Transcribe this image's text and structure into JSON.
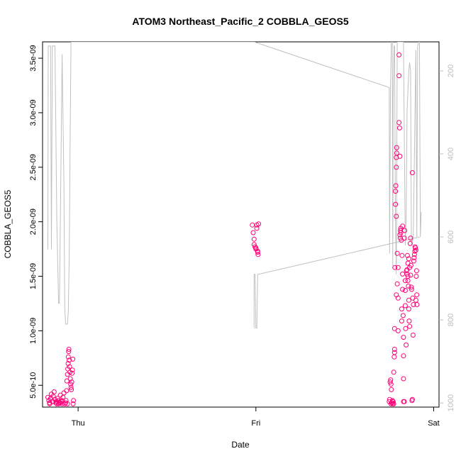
{
  "chart_data": {
    "type": "scatter",
    "title": "ATOM3 Northeast_Pacific_2 COBBLA_GEOS5",
    "xlabel": "Date",
    "ylabel": "COBBLA_GEOS5",
    "x_ticks": [
      {
        "label": "Thu",
        "day": 0
      },
      {
        "label": "Fri",
        "day": 1
      },
      {
        "label": "Sat",
        "day": 2
      }
    ],
    "xlim": [
      -0.2,
      2.03
    ],
    "y_ticks": [
      "5.0e-10",
      "1.0e-09",
      "1.5e-09",
      "2.0e-09",
      "2.5e-09",
      "3.0e-09",
      "3.5e-09"
    ],
    "y_tick_values": [
      5e-10,
      1e-09,
      1.5e-09,
      2e-09,
      2.5e-09,
      3e-09,
      3.5e-09
    ],
    "ylim": [
      3e-10,
      3.65e-09
    ],
    "y2_ticks": [
      "200",
      "400",
      "600",
      "800",
      "1000"
    ],
    "y2_tick_values": [
      200,
      400,
      600,
      800,
      1000
    ],
    "y2lim": [
      1010,
      130
    ],
    "y2_reversed": true,
    "point_color": "#ff0077",
    "line_color": "#c0c0c0",
    "tick_color_right": "#bdbdbd",
    "series": [
      {
        "marker": "circle",
        "points": [
          [
            -0.17,
            3.9e-10
          ],
          [
            -0.165,
            3.6e-10
          ],
          [
            -0.16,
            3.4e-10
          ],
          [
            -0.155,
            3.8e-10
          ],
          [
            -0.15,
            4.2e-10
          ],
          [
            -0.145,
            3.5e-10
          ],
          [
            -0.14,
            4e-10
          ],
          [
            -0.135,
            4.4e-10
          ],
          [
            -0.13,
            3.7e-10
          ],
          [
            -0.125,
            3.4e-10
          ],
          [
            -0.12,
            3.5e-10
          ],
          [
            -0.115,
            3.8e-10
          ],
          [
            -0.11,
            3.6e-10
          ],
          [
            -0.105,
            3.4e-10
          ],
          [
            -0.1,
            4.1e-10
          ],
          [
            -0.095,
            3.5e-10
          ],
          [
            -0.09,
            3.6e-10
          ],
          [
            -0.085,
            3.9e-10
          ],
          [
            -0.08,
            4.3e-10
          ],
          [
            -0.075,
            3.3e-10
          ],
          [
            -0.07,
            3.4e-10
          ],
          [
            -0.068,
            3.6e-10
          ],
          [
            -0.065,
            4.5e-10
          ],
          [
            -0.063,
            5.4e-10
          ],
          [
            -0.06,
            6e-10
          ],
          [
            -0.058,
            6.5e-10
          ],
          [
            -0.056,
            7e-10
          ],
          [
            -0.055,
            7.6e-10
          ],
          [
            -0.053,
            8.1e-10
          ],
          [
            -0.052,
            8.3e-10
          ],
          [
            -0.05,
            7.3e-10
          ],
          [
            -0.048,
            6.7e-10
          ],
          [
            -0.046,
            6.2e-10
          ],
          [
            -0.044,
            5.6e-10
          ],
          [
            -0.042,
            5.1e-10
          ],
          [
            -0.04,
            4.8e-10
          ],
          [
            -0.038,
            4.6e-10
          ],
          [
            -0.036,
            5.3e-10
          ],
          [
            -0.034,
            6.1e-10
          ],
          [
            -0.032,
            6.4e-10
          ],
          [
            -0.03,
            7.4e-10
          ],
          [
            -0.028,
            3.3e-10
          ],
          [
            -0.026,
            3.6e-10
          ],
          [
            -0.11,
            3.3e-10
          ],
          [
            -0.09,
            3.3e-10
          ],
          [
            -0.06,
            3.3e-10
          ],
          [
            -0.16,
            3.3e-10
          ],
          [
            -0.14,
            3.5e-10
          ],
          [
            -0.12,
            3.3e-10
          ],
          [
            -0.1,
            3.4e-10
          ],
          [
            0.98,
            1.97e-09
          ],
          [
            0.985,
            1.9e-09
          ],
          [
            0.99,
            1.84e-09
          ],
          [
            0.99,
            1.79e-09
          ],
          [
            0.995,
            1.77e-09
          ],
          [
            1.0,
            1.76e-09
          ],
          [
            1.0,
            1.75e-09
          ],
          [
            1.005,
            1.97e-09
          ],
          [
            1.005,
            1.94e-09
          ],
          [
            1.01,
            1.73e-09
          ],
          [
            1.01,
            1.72e-09
          ],
          [
            1.012,
            1.7e-09
          ],
          [
            1.015,
            1.98e-09
          ],
          [
            1.75,
            3.5e-10
          ],
          [
            1.752,
            3.7e-10
          ],
          [
            1.755,
            5.3e-10
          ],
          [
            1.758,
            5.5e-10
          ],
          [
            1.76,
            5.1e-10
          ],
          [
            1.762,
            4.6e-10
          ],
          [
            1.765,
            3.4e-10
          ],
          [
            1.768,
            3.6e-10
          ],
          [
            1.77,
            3.3e-10
          ],
          [
            1.772,
            3.5e-10
          ],
          [
            1.775,
            6.2e-10
          ],
          [
            1.778,
            7.6e-10
          ],
          [
            1.78,
            8.3e-10
          ],
          [
            1.78,
            8e-10
          ],
          [
            1.78,
            1.02e-09
          ],
          [
            1.782,
            1.58e-09
          ],
          [
            1.785,
            2.16e-09
          ],
          [
            1.785,
            2.28e-09
          ],
          [
            1.787,
            2.33e-09
          ],
          [
            1.79,
            2.05e-09
          ],
          [
            1.79,
            2.5e-09
          ],
          [
            1.79,
            2.59e-09
          ],
          [
            1.792,
            2.63e-09
          ],
          [
            1.792,
            2.68e-09
          ],
          [
            1.795,
            1.71e-09
          ],
          [
            1.8,
            1e-09
          ],
          [
            1.8,
            1.3e-09
          ],
          [
            1.8,
            1.58e-09
          ],
          [
            1.805,
            3.53e-09
          ],
          [
            1.805,
            3.34e-09
          ],
          [
            1.805,
            2.91e-09
          ],
          [
            1.808,
            2.86e-09
          ],
          [
            1.81,
            2.6e-09
          ],
          [
            1.81,
            1.88e-09
          ],
          [
            1.812,
            1.85e-09
          ],
          [
            1.813,
            1.92e-09
          ],
          [
            1.815,
            1.94e-09
          ],
          [
            1.815,
            1.9e-09
          ],
          [
            1.818,
            1.83e-09
          ],
          [
            1.82,
            1.2e-09
          ],
          [
            1.82,
            1.09e-09
          ],
          [
            1.822,
            1.69e-09
          ],
          [
            1.825,
            1.52e-09
          ],
          [
            1.825,
            1.38e-09
          ],
          [
            1.828,
            1.14e-09
          ],
          [
            1.83,
            9.4e-10
          ],
          [
            1.83,
            7.7e-10
          ],
          [
            1.83,
            5.6e-10
          ],
          [
            1.835,
            3.5e-10
          ],
          [
            1.835,
            1.85e-09
          ],
          [
            1.837,
            1.92e-09
          ],
          [
            1.84,
            1.46e-09
          ],
          [
            1.84,
            1.37e-09
          ],
          [
            1.84,
            1.23e-09
          ],
          [
            1.842,
            1.02e-09
          ],
          [
            1.845,
            8.7e-10
          ],
          [
            1.847,
            1.55e-09
          ],
          [
            1.85,
            1.52e-09
          ],
          [
            1.85,
            1.56e-09
          ],
          [
            1.852,
            1.69e-09
          ],
          [
            1.855,
            1.5e-09
          ],
          [
            1.855,
            1.46e-09
          ],
          [
            1.858,
            1.41e-09
          ],
          [
            1.86,
            1.28e-09
          ],
          [
            1.86,
            1.2e-09
          ],
          [
            1.862,
            1.09e-09
          ],
          [
            1.865,
            1.04e-09
          ],
          [
            1.865,
            1.58e-09
          ],
          [
            1.868,
            1.8e-09
          ],
          [
            1.87,
            1.85e-09
          ],
          [
            1.87,
            1.51e-09
          ],
          [
            1.872,
            1.6e-09
          ],
          [
            1.874,
            1.4e-09
          ],
          [
            1.876,
            1.38e-09
          ],
          [
            1.878,
            3.6e-10
          ],
          [
            1.88,
            3.7e-10
          ],
          [
            1.88,
            2.45e-09
          ],
          [
            1.882,
            1.3e-09
          ],
          [
            1.884,
            9.6e-10
          ],
          [
            1.886,
            1.24e-09
          ],
          [
            1.888,
            1.64e-09
          ],
          [
            1.89,
            1.67e-09
          ],
          [
            1.892,
            1.7e-09
          ],
          [
            1.894,
            1.73e-09
          ],
          [
            1.895,
            1.77e-09
          ],
          [
            1.897,
            1.76e-09
          ],
          [
            1.9,
            1.28e-09
          ],
          [
            1.9,
            1.74e-09
          ],
          [
            1.902,
            1.5e-09
          ],
          [
            1.904,
            1.55e-09
          ],
          [
            1.905,
            1.33e-09
          ],
          [
            1.906,
            1.24e-09
          ],
          [
            1.86,
            1.66e-09
          ],
          [
            1.855,
            1.62e-09
          ],
          [
            1.825,
            1.96e-09
          ],
          [
            1.83,
            3.5e-10
          ],
          [
            1.79,
            1.33e-09
          ],
          [
            1.795,
            1.43e-09
          ],
          [
            1.76,
            3.3e-10
          ],
          [
            1.765,
            3.4e-10
          ],
          [
            1.77,
            3.5e-10
          ],
          [
            1.775,
            3.3e-10
          ]
        ]
      },
      {
        "axis": "right",
        "line": true,
        "points": [
          [
            -0.17,
            630
          ],
          [
            -0.168,
            140
          ],
          [
            -0.155,
            140
          ],
          [
            -0.15,
            630
          ],
          [
            -0.145,
            140
          ],
          [
            -0.13,
            140
          ],
          [
            -0.12,
            560
          ],
          [
            -0.11,
            760
          ],
          [
            -0.105,
            760
          ],
          [
            -0.1,
            560
          ],
          [
            -0.09,
            160
          ],
          [
            -0.08,
            470
          ],
          [
            -0.075,
            770
          ],
          [
            -0.07,
            810
          ],
          [
            -0.06,
            810
          ],
          [
            -0.055,
            780
          ],
          [
            -0.05,
            650
          ],
          [
            -0.045,
            370
          ],
          [
            -0.04,
            130
          ],
          [
            0.99,
            130
          ],
          [
            1.75,
            240
          ],
          [
            1.752,
            640
          ],
          [
            1.757,
            240
          ],
          [
            1.762,
            130
          ],
          [
            1.767,
            130
          ],
          [
            1.77,
            670
          ],
          [
            1.772,
            260
          ],
          [
            1.777,
            140
          ],
          [
            1.78,
            140
          ],
          [
            1.785,
            560
          ],
          [
            1.79,
            690
          ],
          [
            1.795,
            130
          ],
          [
            1.83,
            130
          ],
          [
            1.84,
            620
          ],
          [
            1.845,
            560
          ],
          [
            1.85,
            300
          ],
          [
            1.86,
            200
          ],
          [
            1.865,
            180
          ],
          [
            1.87,
            200
          ],
          [
            1.875,
            620
          ],
          [
            1.885,
            600
          ],
          [
            1.9,
            150
          ],
          [
            1.905,
            600
          ],
          [
            1.91,
            140
          ],
          [
            1.915,
            130
          ],
          [
            1.92,
            130
          ],
          [
            1.925,
            600
          ],
          [
            1.93,
            540
          ]
        ]
      },
      {
        "axis": "right",
        "line": true,
        "points": [
          [
            0.99,
            820
          ],
          [
            0.99,
            690
          ],
          [
            0.995,
            690
          ],
          [
            1.0,
            820
          ],
          [
            1.005,
            820
          ],
          [
            1.01,
            690
          ],
          [
            1.015,
            690
          ],
          [
            1.92,
            600
          ]
        ]
      }
    ]
  }
}
